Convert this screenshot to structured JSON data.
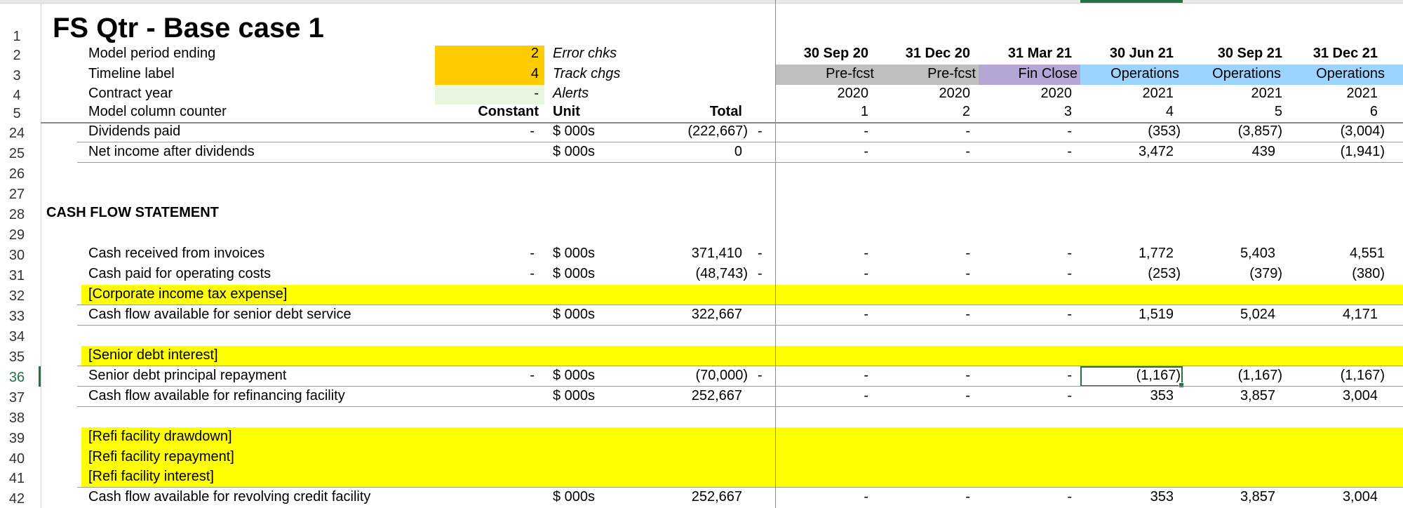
{
  "sheet": {
    "title": "FS Qtr - Base case 1",
    "colors": {
      "orange": "#FFCC00",
      "light_green": "#E8F5DF",
      "grey": "#BFBFBF",
      "purple": "#B4A7D6",
      "blue": "#9CD3FF",
      "yellow": "#FFFF00",
      "selection": "#217346"
    },
    "header_rows": {
      "r2": {
        "num": "2",
        "label": "Model period ending",
        "value": "2",
        "flag": "Error chks"
      },
      "r3": {
        "num": "3",
        "label": "Timeline label",
        "value": "4",
        "flag": "Track chgs"
      },
      "r4": {
        "num": "4",
        "label": "Contract year",
        "value": "-",
        "flag": "Alerts"
      },
      "r5": {
        "num": "5",
        "label": "Model column counter",
        "constant": "Constant",
        "unit": "Unit",
        "total": "Total"
      }
    },
    "periods": [
      {
        "date": "30 Sep 20",
        "label": "Pre-fcst",
        "year": "2020",
        "counter": "1"
      },
      {
        "date": "31 Dec 20",
        "label": "Pre-fcst",
        "year": "2020",
        "counter": "2"
      },
      {
        "date": "31 Mar 21",
        "label": "Fin Close",
        "year": "2020",
        "counter": "3"
      },
      {
        "date": "30 Jun 21",
        "label": "Operations",
        "year": "2021",
        "counter": "4"
      },
      {
        "date": "30 Sep 21",
        "label": "Operations",
        "year": "2021",
        "counter": "5"
      },
      {
        "date": "31 Dec 21",
        "label": "Operations",
        "year": "2021",
        "counter": "6"
      }
    ],
    "rows": {
      "r1": {
        "num": "1"
      },
      "r24": {
        "num": "24",
        "label": "Dividends paid",
        "constant": "-",
        "unit": "$ 000s",
        "total": "(222,667)",
        "chk": "-",
        "vals": [
          "-",
          "-",
          "-",
          "(353)",
          "(3,857)",
          "(3,004)"
        ]
      },
      "r25": {
        "num": "25",
        "label": "Net income after dividends",
        "unit": "$ 000s",
        "total": "0",
        "vals": [
          "-",
          "-",
          "-",
          "3,472",
          "439",
          "(1,941)"
        ]
      },
      "r26": {
        "num": "26"
      },
      "r27": {
        "num": "27"
      },
      "r28": {
        "num": "28",
        "label": "CASH FLOW STATEMENT"
      },
      "r29": {
        "num": "29"
      },
      "r30": {
        "num": "30",
        "label": "Cash received from invoices",
        "constant": "-",
        "unit": "$ 000s",
        "total": "371,410",
        "chk": "-",
        "vals": [
          "-",
          "-",
          "-",
          "1,772",
          "5,403",
          "4,551"
        ]
      },
      "r31": {
        "num": "31",
        "label": "Cash paid for operating costs",
        "constant": "-",
        "unit": "$ 000s",
        "total": "(48,743)",
        "chk": "-",
        "vals": [
          "-",
          "-",
          "-",
          "(253)",
          "(379)",
          "(380)"
        ]
      },
      "r32": {
        "num": "32",
        "label": "[Corporate income tax expense]"
      },
      "r33": {
        "num": "33",
        "label": "Cash flow available for senior debt service",
        "unit": "$ 000s",
        "total": "322,667",
        "vals": [
          "-",
          "-",
          "-",
          "1,519",
          "5,024",
          "4,171"
        ]
      },
      "r34": {
        "num": "34"
      },
      "r35": {
        "num": "35",
        "label": "[Senior debt interest]"
      },
      "r36": {
        "num": "36",
        "label": "Senior debt principal repayment",
        "constant": "-",
        "unit": "$ 000s",
        "total": "(70,000)",
        "chk": "-",
        "vals": [
          "-",
          "-",
          "-",
          "(1,167)",
          "(1,167)",
          "(1,167)"
        ]
      },
      "r37": {
        "num": "37",
        "label": "Cash flow available for refinancing facility",
        "unit": "$ 000s",
        "total": "252,667",
        "vals": [
          "-",
          "-",
          "-",
          "353",
          "3,857",
          "3,004"
        ]
      },
      "r38": {
        "num": "38"
      },
      "r39": {
        "num": "39",
        "label": "[Refi facility drawdown]"
      },
      "r40": {
        "num": "40",
        "label": "[Refi facility repayment]"
      },
      "r41": {
        "num": "41",
        "label": "[Refi facility interest]"
      },
      "r42": {
        "num": "42",
        "label": "Cash flow available for revolving credit facility",
        "unit": "$ 000s",
        "total": "252,667",
        "vals": [
          "-",
          "-",
          "-",
          "353",
          "3,857",
          "3,004"
        ]
      }
    }
  }
}
